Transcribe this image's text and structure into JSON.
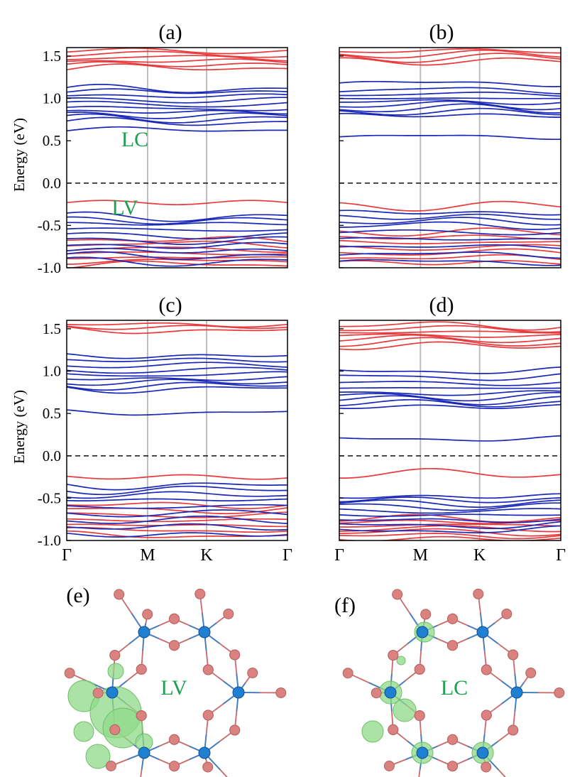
{
  "colors": {
    "up": "#e8393c",
    "down": "#1a28b8",
    "fermi": "#222222",
    "kline": "#bdbdbd",
    "annotation": "#1fa050",
    "atom_o": "#d9827f",
    "atom_metal": "#1f7fd0",
    "orbital": "#8fd98a"
  },
  "y_axis": {
    "title": "Energy (eV)",
    "ylim": [
      -1.0,
      1.6
    ],
    "ticks": [
      "1.5",
      "1.0",
      "0.5",
      "0.0",
      "-0.5",
      "-1.0"
    ],
    "tick_values": [
      1.5,
      1.0,
      0.5,
      0.0,
      -0.5,
      -1.0
    ]
  },
  "x_axis": {
    "kpoints": [
      "Γ",
      "M",
      "K",
      "Γ"
    ],
    "kpoint_positions": [
      0,
      1,
      1.73,
      2.73
    ]
  },
  "chart_data": [
    {
      "type": "line",
      "panel": "(a)",
      "title": "(a)",
      "ylabel": "Energy (eV)",
      "ylim": [
        -1.0,
        1.6
      ],
      "fermi_level": 0.0,
      "x": [
        "Γ",
        "M",
        "K",
        "Γ"
      ],
      "annotations": [
        {
          "text": "LC",
          "energy": 0.55
        },
        {
          "text": "LV",
          "energy": -0.28
        }
      ],
      "series": [
        {
          "name": "spin-up (red)",
          "color": "up",
          "bands": [
            -0.23,
            -0.67,
            -0.72,
            -0.78,
            -0.83,
            -0.88,
            -0.92,
            -0.96,
            1.36,
            1.4,
            1.44,
            1.48,
            1.52,
            1.56
          ]
        },
        {
          "name": "spin-down (blue)",
          "color": "down",
          "bands": [
            0.63,
            0.72,
            0.76,
            0.8,
            0.84,
            0.88,
            0.93,
            0.98,
            1.03,
            1.08,
            1.11,
            -0.4,
            -0.44,
            -0.48,
            -0.55,
            -0.62,
            -0.68,
            -0.74,
            -0.8,
            -0.86,
            -0.93
          ]
        }
      ]
    },
    {
      "type": "line",
      "panel": "(b)",
      "title": "(b)",
      "ylim": [
        -1.0,
        1.6
      ],
      "fermi_level": 0.0,
      "x": [
        "Γ",
        "M",
        "K",
        "Γ"
      ],
      "series": [
        {
          "name": "spin-up (red)",
          "color": "up",
          "bands": [
            -0.27,
            -0.58,
            -0.64,
            -0.7,
            -0.76,
            -0.82,
            -0.88,
            -0.94,
            1.44,
            1.48,
            1.52,
            1.56
          ]
        },
        {
          "name": "spin-down (blue)",
          "color": "down",
          "bands": [
            0.55,
            0.8,
            0.84,
            0.88,
            0.92,
            0.96,
            1.0,
            1.05,
            1.1,
            1.18,
            -0.35,
            -0.4,
            -0.45,
            -0.5,
            -0.58,
            -0.66,
            -0.75,
            -0.84,
            -0.93
          ]
        }
      ]
    },
    {
      "type": "line",
      "panel": "(c)",
      "title": "(c)",
      "ylabel": "Energy (eV)",
      "ylim": [
        -1.0,
        1.6
      ],
      "fermi_level": 0.0,
      "x": [
        "Γ",
        "M",
        "K",
        "Γ"
      ],
      "series": [
        {
          "name": "spin-up (red)",
          "color": "up",
          "bands": [
            -0.25,
            -0.58,
            -0.64,
            -0.7,
            -0.76,
            -0.82,
            -0.88,
            -0.94,
            1.48,
            1.52,
            1.55
          ]
        },
        {
          "name": "spin-down (blue)",
          "color": "down",
          "bands": [
            0.51,
            0.79,
            0.83,
            0.87,
            0.91,
            0.96,
            1.01,
            1.07,
            1.13,
            1.18,
            -0.35,
            -0.4,
            -0.46,
            -0.52,
            -0.6,
            -0.68,
            -0.76,
            -0.84,
            -0.93
          ]
        }
      ]
    },
    {
      "type": "line",
      "panel": "(d)",
      "title": "(d)",
      "ylim": [
        -1.0,
        1.6
      ],
      "fermi_level": 0.0,
      "x": [
        "Γ",
        "M",
        "K",
        "Γ"
      ],
      "series": [
        {
          "name": "spin-up (red)",
          "color": "up",
          "bands": [
            -0.21,
            -0.74,
            -0.78,
            -0.82,
            -0.86,
            -0.9,
            -0.94,
            -0.98,
            1.3,
            1.34,
            1.38,
            1.42,
            1.46,
            1.5,
            1.54
          ]
        },
        {
          "name": "spin-down (blue)",
          "color": "down",
          "bands": [
            0.2,
            0.58,
            0.62,
            0.66,
            0.7,
            0.74,
            0.8,
            0.86,
            0.93,
            1.0,
            -0.48,
            -0.52,
            -0.56,
            -0.6,
            -0.65,
            -0.7,
            -0.76,
            -0.82,
            -0.88
          ]
        }
      ]
    }
  ],
  "structures": [
    {
      "panel": "(e)",
      "label": "(e)",
      "annotation": "LV"
    },
    {
      "panel": "(f)",
      "label": "(f)",
      "annotation": "LC"
    }
  ]
}
